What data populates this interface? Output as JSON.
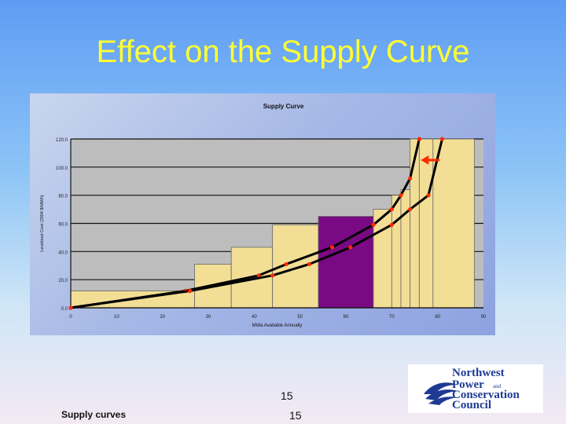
{
  "slide": {
    "title": "Effect on the Supply Curve",
    "page_number": "15",
    "page_number_footer": "15",
    "footer_text": "Supply curves"
  },
  "logo": {
    "lines": [
      "Northwest",
      "Power",
      "Conservation",
      "Council"
    ],
    "small_word": "and",
    "color": "#1f3a93"
  },
  "chart_data": {
    "type": "bar",
    "title": "Supply Curve",
    "xlabel": "MWa Available Annually",
    "ylabel": "Levelized Cost (2004 $/MWh)",
    "xlim": [
      0,
      90
    ],
    "ylim": [
      0,
      120
    ],
    "x_ticks": [
      "0",
      "10",
      "20",
      "30",
      "40",
      "50",
      "60",
      "70",
      "80",
      "90"
    ],
    "y_ticks": [
      "0.0",
      "20.0",
      "40.0",
      "60.0",
      "80.0",
      "100.0",
      "120.0"
    ],
    "grid": true,
    "blocks": [
      {
        "x0": 0,
        "x1": 27,
        "value": 12,
        "highlight": false
      },
      {
        "x0": 27,
        "x1": 35,
        "value": 31,
        "highlight": false
      },
      {
        "x0": 35,
        "x1": 44,
        "value": 43,
        "highlight": false
      },
      {
        "x0": 44,
        "x1": 54,
        "value": 59,
        "highlight": false
      },
      {
        "x0": 54,
        "x1": 66,
        "value": 65,
        "highlight": true
      },
      {
        "x0": 66,
        "x1": 70,
        "value": 70,
        "highlight": false
      },
      {
        "x0": 70,
        "x1": 72,
        "value": 80,
        "highlight": false
      },
      {
        "x0": 72,
        "x1": 74,
        "value": 84,
        "highlight": false
      },
      {
        "x0": 74,
        "x1": 76,
        "value": 120,
        "highlight": false
      },
      {
        "x0": 76,
        "x1": 79,
        "value": 120,
        "highlight": false
      },
      {
        "x0": 79,
        "x1": 88,
        "value": 120,
        "highlight": false
      }
    ],
    "series": [
      {
        "x": [
          0,
          25,
          41,
          47,
          57,
          66,
          70,
          72,
          74,
          76
        ],
        "y": [
          0,
          12,
          23,
          31,
          43,
          59,
          70,
          80,
          92,
          120
        ]
      },
      {
        "x": [
          0,
          26,
          44,
          52,
          61,
          70,
          74,
          78,
          81
        ],
        "y": [
          0,
          12,
          23,
          31,
          43,
          59,
          70,
          80,
          120
        ]
      }
    ],
    "annotation": "shift-left-arrow",
    "colors": {
      "block": "#f3de96",
      "highlight": "#7a0a83",
      "curve": "#000000",
      "point": "#ff2a00",
      "arrow": "#ff2a00"
    }
  }
}
